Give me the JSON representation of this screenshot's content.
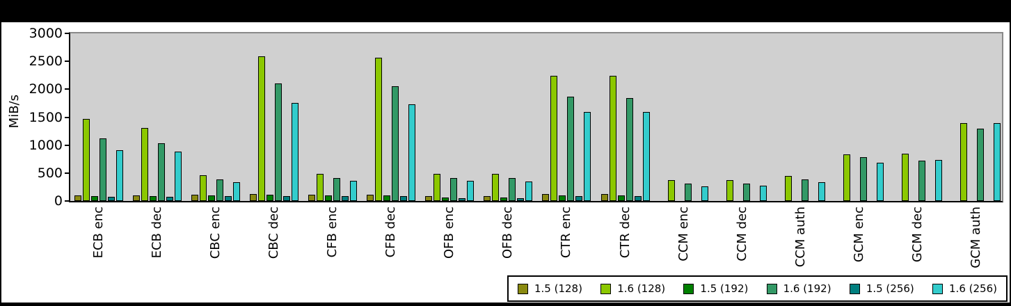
{
  "window": {
    "outer_background": "#000000",
    "canvas_background": "#ffffff"
  },
  "chart_data": {
    "type": "bar",
    "title": "",
    "ylabel": "MiB/s",
    "xlabel": "",
    "ylim": [
      0,
      3000
    ],
    "ytick_step": 500,
    "yticks": [
      "3000",
      "2500",
      "2000",
      "1500",
      "1000",
      "500",
      "0"
    ],
    "grid": false,
    "plot_bg": "#d0d0d0",
    "legend_position": "bottom-right",
    "categories": [
      "ECB enc",
      "ECB dec",
      "CBC enc",
      "CBC dec",
      "CFB enc",
      "CFB dec",
      "OFB enc",
      "OFB dec",
      "CTR enc",
      "CTR dec",
      "CCM enc",
      "CCM dec",
      "CCM auth",
      "GCM enc",
      "GCM dec",
      "GCM auth"
    ],
    "series": [
      {
        "name": "1.5 (128)",
        "color": "#8a8a10",
        "values": [
          100,
          105,
          115,
          130,
          115,
          115,
          90,
          90,
          120,
          120,
          0,
          0,
          0,
          0,
          0,
          0
        ]
      },
      {
        "name": "1.6 (128)",
        "color": "#8cc800",
        "values": [
          1470,
          1305,
          455,
          2590,
          490,
          2560,
          490,
          490,
          2240,
          2240,
          375,
          375,
          445,
          835,
          850,
          1395
        ]
      },
      {
        "name": "1.5 (192)",
        "color": "#008000",
        "values": [
          90,
          90,
          100,
          110,
          95,
          95,
          65,
          65,
          105,
          105,
          0,
          0,
          0,
          0,
          0,
          0
        ]
      },
      {
        "name": "1.6 (192)",
        "color": "#339966",
        "values": [
          1115,
          1030,
          390,
          2100,
          415,
          2060,
          415,
          415,
          1865,
          1840,
          310,
          315,
          385,
          785,
          720,
          1300
        ]
      },
      {
        "name": "1.5 (256)",
        "color": "#007f7f",
        "values": [
          80,
          80,
          90,
          90,
          85,
          85,
          55,
          55,
          85,
          85,
          0,
          0,
          0,
          0,
          0,
          0
        ]
      },
      {
        "name": "1.6 (256)",
        "color": "#33cccc",
        "values": [
          905,
          885,
          340,
          1760,
          355,
          1735,
          355,
          350,
          1590,
          1590,
          265,
          270,
          335,
          680,
          735,
          1400
        ]
      }
    ]
  }
}
